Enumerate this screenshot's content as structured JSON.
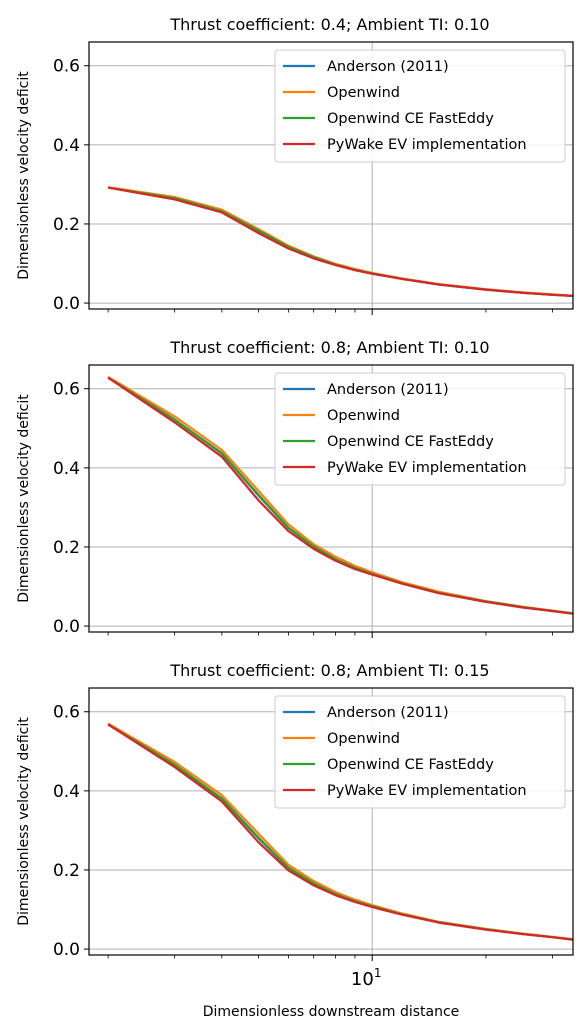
{
  "figure": {
    "xlabel": "Dimensionless downstream distance",
    "colors": {
      "Anderson (2011)": "#1f77b4",
      "Openwind": "#ff7f0e",
      "Openwind CE FastEddy": "#2ca02c",
      "PyWake EV implementation": "#d62728",
      "grid": "#b0b0b0",
      "axes": "#000000"
    }
  },
  "chart_data": [
    {
      "type": "line",
      "title": "Thrust coefficient: 0.4; Ambient TI: 0.10",
      "ylabel": "Dimensionless velocity deficit",
      "xlabel": "",
      "xscale": "log",
      "xlim": [
        1.78,
        34.0
      ],
      "ylim": [
        -0.015,
        0.66
      ],
      "yticks": [
        "0.0",
        "0.2",
        "0.4",
        "0.6"
      ],
      "ytick_values": [
        0.0,
        0.2,
        0.4,
        0.6
      ],
      "xticks": [],
      "grid": true,
      "legend": "top-right",
      "x": [
        2,
        3,
        4,
        5,
        6,
        7,
        8,
        9,
        10,
        12,
        15,
        20,
        25,
        30,
        34
      ],
      "series": [
        {
          "name": "Anderson (2011)",
          "values": [
            0.292,
            0.265,
            0.232,
            0.182,
            0.141,
            0.115,
            0.097,
            0.084,
            0.075,
            0.061,
            0.047,
            0.034,
            0.026,
            0.021,
            0.018
          ]
        },
        {
          "name": "Openwind",
          "values": [
            0.293,
            0.268,
            0.236,
            0.187,
            0.145,
            0.118,
            0.099,
            0.086,
            0.076,
            0.062,
            0.048,
            0.035,
            0.027,
            0.022,
            0.018
          ]
        },
        {
          "name": "Openwind CE FastEddy",
          "values": [
            0.292,
            0.265,
            0.232,
            0.183,
            0.142,
            0.116,
            0.097,
            0.084,
            0.075,
            0.061,
            0.047,
            0.034,
            0.026,
            0.021,
            0.018
          ]
        },
        {
          "name": "PyWake EV implementation",
          "values": [
            0.292,
            0.262,
            0.229,
            0.177,
            0.138,
            0.113,
            0.096,
            0.083,
            0.074,
            0.061,
            0.047,
            0.034,
            0.026,
            0.021,
            0.018
          ]
        }
      ]
    },
    {
      "type": "line",
      "title": "Thrust coefficient: 0.8; Ambient TI: 0.10",
      "ylabel": "Dimensionless velocity deficit",
      "xlabel": "",
      "xscale": "log",
      "xlim": [
        1.78,
        34.0
      ],
      "ylim": [
        -0.015,
        0.66
      ],
      "yticks": [
        "0.0",
        "0.2",
        "0.4",
        "0.6"
      ],
      "ytick_values": [
        0.0,
        0.2,
        0.4,
        0.6
      ],
      "xticks": [],
      "grid": true,
      "legend": "top-right",
      "x": [
        2,
        3,
        4,
        5,
        6,
        7,
        8,
        9,
        10,
        12,
        15,
        20,
        25,
        30,
        34
      ],
      "series": [
        {
          "name": "Anderson (2011)",
          "values": [
            0.628,
            0.522,
            0.436,
            0.33,
            0.248,
            0.2,
            0.168,
            0.147,
            0.132,
            0.108,
            0.084,
            0.062,
            0.048,
            0.038,
            0.032
          ]
        },
        {
          "name": "Openwind",
          "values": [
            0.63,
            0.53,
            0.445,
            0.342,
            0.257,
            0.207,
            0.175,
            0.152,
            0.136,
            0.111,
            0.087,
            0.063,
            0.049,
            0.039,
            0.032
          ]
        },
        {
          "name": "Openwind CE FastEddy",
          "values": [
            0.628,
            0.522,
            0.437,
            0.332,
            0.249,
            0.201,
            0.169,
            0.147,
            0.132,
            0.108,
            0.084,
            0.062,
            0.048,
            0.038,
            0.032
          ]
        },
        {
          "name": "PyWake EV implementation",
          "values": [
            0.628,
            0.515,
            0.428,
            0.318,
            0.24,
            0.195,
            0.165,
            0.144,
            0.13,
            0.107,
            0.083,
            0.061,
            0.047,
            0.038,
            0.031
          ]
        }
      ]
    },
    {
      "type": "line",
      "title": "Thrust coefficient: 0.8; Ambient TI: 0.15",
      "ylabel": "Dimensionless velocity deficit",
      "xlabel": "Dimensionless downstream distance",
      "xscale": "log",
      "xlim": [
        1.78,
        34.0
      ],
      "ylim": [
        -0.015,
        0.66
      ],
      "yticks": [
        "0.0",
        "0.2",
        "0.4",
        "0.6"
      ],
      "ytick_values": [
        0.0,
        0.2,
        0.4,
        0.6
      ],
      "xticks": [
        "10"
      ],
      "xtick_values": [
        10
      ],
      "grid": true,
      "legend": "top-right",
      "x": [
        2,
        3,
        4,
        5,
        6,
        7,
        8,
        9,
        10,
        12,
        15,
        20,
        25,
        30,
        34
      ],
      "series": [
        {
          "name": "Anderson (2011)",
          "values": [
            0.568,
            0.465,
            0.38,
            0.28,
            0.205,
            0.165,
            0.139,
            0.121,
            0.108,
            0.088,
            0.068,
            0.05,
            0.038,
            0.03,
            0.024
          ]
        },
        {
          "name": "Openwind",
          "values": [
            0.57,
            0.473,
            0.389,
            0.292,
            0.213,
            0.172,
            0.144,
            0.125,
            0.111,
            0.09,
            0.069,
            0.051,
            0.039,
            0.031,
            0.025
          ]
        },
        {
          "name": "Openwind CE FastEddy",
          "values": [
            0.568,
            0.466,
            0.381,
            0.282,
            0.206,
            0.166,
            0.139,
            0.121,
            0.108,
            0.088,
            0.068,
            0.05,
            0.038,
            0.03,
            0.024
          ]
        },
        {
          "name": "PyWake EV implementation",
          "values": [
            0.568,
            0.46,
            0.373,
            0.27,
            0.199,
            0.161,
            0.136,
            0.119,
            0.106,
            0.087,
            0.067,
            0.049,
            0.038,
            0.03,
            0.024
          ]
        }
      ]
    }
  ]
}
